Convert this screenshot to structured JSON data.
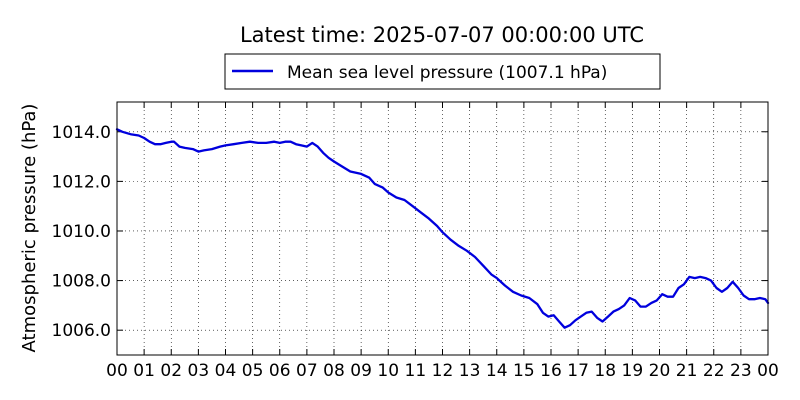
{
  "chart_data": {
    "type": "line",
    "title": "Latest time: 2025-07-07 00:00:00 UTC",
    "xlabel": "",
    "ylabel": "Atmospheric pressure (hPa)",
    "xlim": [
      0,
      24
    ],
    "ylim": [
      1005.0,
      1015.2
    ],
    "x_tick_labels": [
      "00",
      "01",
      "02",
      "03",
      "04",
      "05",
      "06",
      "07",
      "08",
      "09",
      "10",
      "11",
      "12",
      "13",
      "14",
      "15",
      "16",
      "17",
      "18",
      "19",
      "20",
      "21",
      "22",
      "23",
      "00"
    ],
    "y_ticks": [
      1006.0,
      1008.0,
      1010.0,
      1012.0,
      1014.0
    ],
    "y_tick_labels": [
      "1006.0",
      "1008.0",
      "1010.0",
      "1012.0",
      "1014.0"
    ],
    "grid": true,
    "legend_position": "top-center",
    "series": [
      {
        "name": "Mean sea level pressure (1007.1 hPa)",
        "color": "#0000dd",
        "x": [
          0,
          0.2,
          0.5,
          0.8,
          1.0,
          1.2,
          1.4,
          1.6,
          1.8,
          2.0,
          2.1,
          2.3,
          2.5,
          2.8,
          3.0,
          3.2,
          3.5,
          3.8,
          4.0,
          4.3,
          4.6,
          4.9,
          5.2,
          5.5,
          5.8,
          6.0,
          6.2,
          6.4,
          6.6,
          6.8,
          7.0,
          7.2,
          7.4,
          7.6,
          7.8,
          8.0,
          8.3,
          8.6,
          9.0,
          9.3,
          9.5,
          9.8,
          10.0,
          10.3,
          10.6,
          10.9,
          11.2,
          11.5,
          11.8,
          12.0,
          12.3,
          12.6,
          12.9,
          13.2,
          13.5,
          13.8,
          14.0,
          14.3,
          14.6,
          14.9,
          15.2,
          15.5,
          15.7,
          15.9,
          16.1,
          16.3,
          16.5,
          16.7,
          16.9,
          17.1,
          17.3,
          17.5,
          17.7,
          17.9,
          18.1,
          18.3,
          18.5,
          18.7,
          18.9,
          19.1,
          19.3,
          19.5,
          19.7,
          19.9,
          20.1,
          20.3,
          20.5,
          20.7,
          20.9,
          21.1,
          21.3,
          21.5,
          21.7,
          21.9,
          22.1,
          22.3,
          22.5,
          22.7,
          22.9,
          23.1,
          23.3,
          23.5,
          23.7,
          23.9,
          24.0
        ],
        "y": [
          1014.1,
          1014.0,
          1013.9,
          1013.85,
          1013.75,
          1013.6,
          1013.5,
          1013.5,
          1013.55,
          1013.6,
          1013.6,
          1013.4,
          1013.35,
          1013.3,
          1013.2,
          1013.25,
          1013.3,
          1013.4,
          1013.45,
          1013.5,
          1013.55,
          1013.6,
          1013.55,
          1013.55,
          1013.6,
          1013.55,
          1013.6,
          1013.6,
          1013.5,
          1013.45,
          1013.4,
          1013.55,
          1013.4,
          1013.15,
          1012.95,
          1012.8,
          1012.6,
          1012.4,
          1012.3,
          1012.15,
          1011.9,
          1011.75,
          1011.55,
          1011.35,
          1011.25,
          1011.0,
          1010.75,
          1010.5,
          1010.2,
          1009.95,
          1009.65,
          1009.4,
          1009.2,
          1008.95,
          1008.6,
          1008.25,
          1008.1,
          1007.8,
          1007.55,
          1007.4,
          1007.3,
          1007.05,
          1006.7,
          1006.55,
          1006.6,
          1006.35,
          1006.1,
          1006.2,
          1006.4,
          1006.55,
          1006.7,
          1006.75,
          1006.5,
          1006.35,
          1006.55,
          1006.75,
          1006.85,
          1007.0,
          1007.3,
          1007.2,
          1006.95,
          1006.95,
          1007.1,
          1007.2,
          1007.45,
          1007.35,
          1007.35,
          1007.7,
          1007.85,
          1008.15,
          1008.1,
          1008.15,
          1008.1,
          1008.0,
          1007.7,
          1007.55,
          1007.7,
          1007.95,
          1007.7,
          1007.4,
          1007.25,
          1007.25,
          1007.3,
          1007.25,
          1007.1
        ]
      }
    ]
  }
}
